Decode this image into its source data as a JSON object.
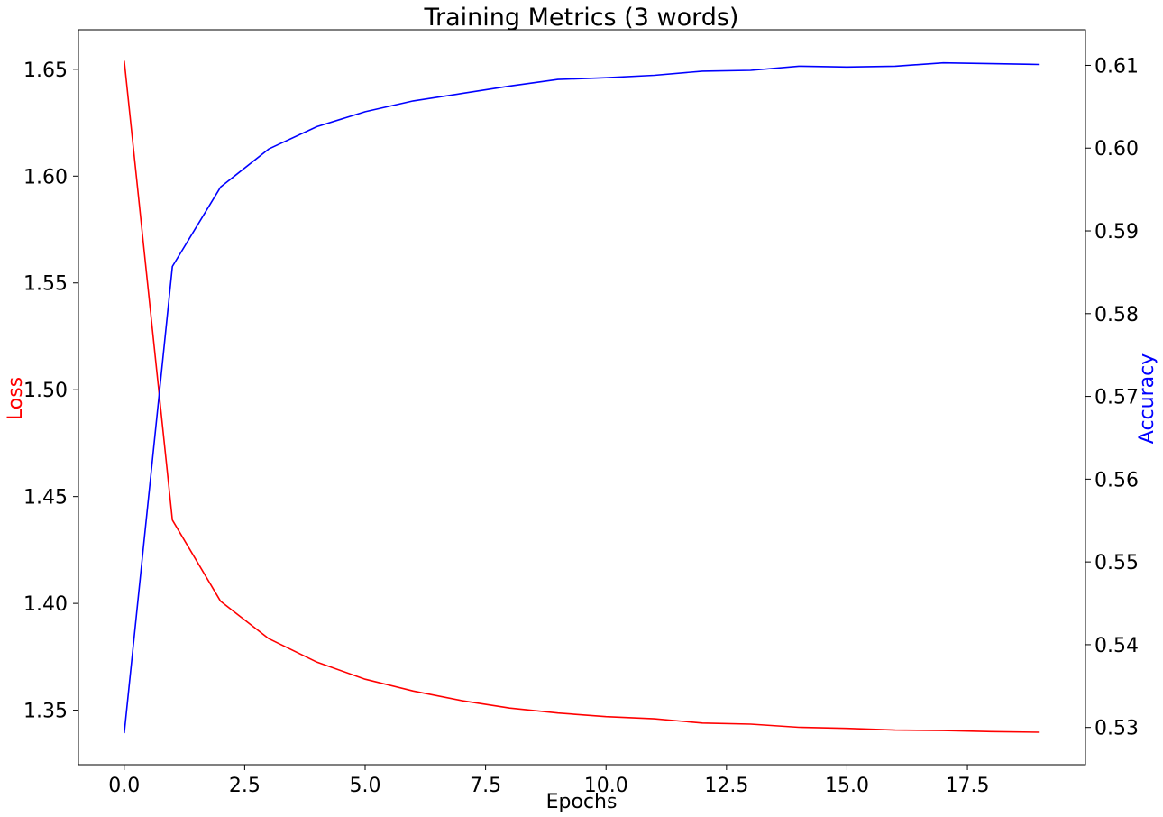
{
  "chart_data": {
    "type": "line",
    "title": "Training Metrics (3 words)",
    "xlabel": "Epochs",
    "ylabel_left": "Loss",
    "ylabel_right": "Accuracy",
    "xlim": [
      -0.95,
      19.95
    ],
    "ylim_left": [
      1.3245,
      1.6685
    ],
    "ylim_right": [
      0.5255,
      0.6143
    ],
    "x_ticks": [
      0.0,
      2.5,
      5.0,
      7.5,
      10.0,
      12.5,
      15.0,
      17.5
    ],
    "x_tick_labels": [
      "0.0",
      "2.5",
      "5.0",
      "7.5",
      "10.0",
      "12.5",
      "15.0",
      "17.5"
    ],
    "y_left_ticks": [
      1.35,
      1.4,
      1.45,
      1.5,
      1.55,
      1.6,
      1.65
    ],
    "y_left_tick_labels": [
      "1.35",
      "1.40",
      "1.45",
      "1.50",
      "1.55",
      "1.60",
      "1.65"
    ],
    "y_right_ticks": [
      0.53,
      0.54,
      0.55,
      0.56,
      0.57,
      0.58,
      0.59,
      0.6,
      0.61
    ],
    "y_right_tick_labels": [
      "0.53",
      "0.54",
      "0.55",
      "0.56",
      "0.57",
      "0.58",
      "0.59",
      "0.60",
      "0.61"
    ],
    "grid": false,
    "x": [
      0,
      1,
      2,
      3,
      4,
      5,
      6,
      7,
      8,
      9,
      10,
      11,
      12,
      13,
      14,
      15,
      16,
      17,
      18,
      19
    ],
    "series": [
      {
        "axis": "left",
        "color": "#ff0000",
        "values": [
          1.654,
          1.439,
          1.401,
          1.3835,
          1.3725,
          1.3645,
          1.359,
          1.3545,
          1.351,
          1.3487,
          1.347,
          1.346,
          1.344,
          1.3435,
          1.342,
          1.3415,
          1.3407,
          1.3405,
          1.34,
          1.3397
        ]
      },
      {
        "axis": "right",
        "color": "#0000ff",
        "values": [
          0.5293,
          0.5857,
          0.5953,
          0.5999,
          0.6026,
          0.6044,
          0.6057,
          0.6066,
          0.6075,
          0.6083,
          0.6085,
          0.6088,
          0.6093,
          0.6094,
          0.6099,
          0.6098,
          0.6099,
          0.6103,
          0.6102,
          0.6101
        ]
      }
    ]
  }
}
